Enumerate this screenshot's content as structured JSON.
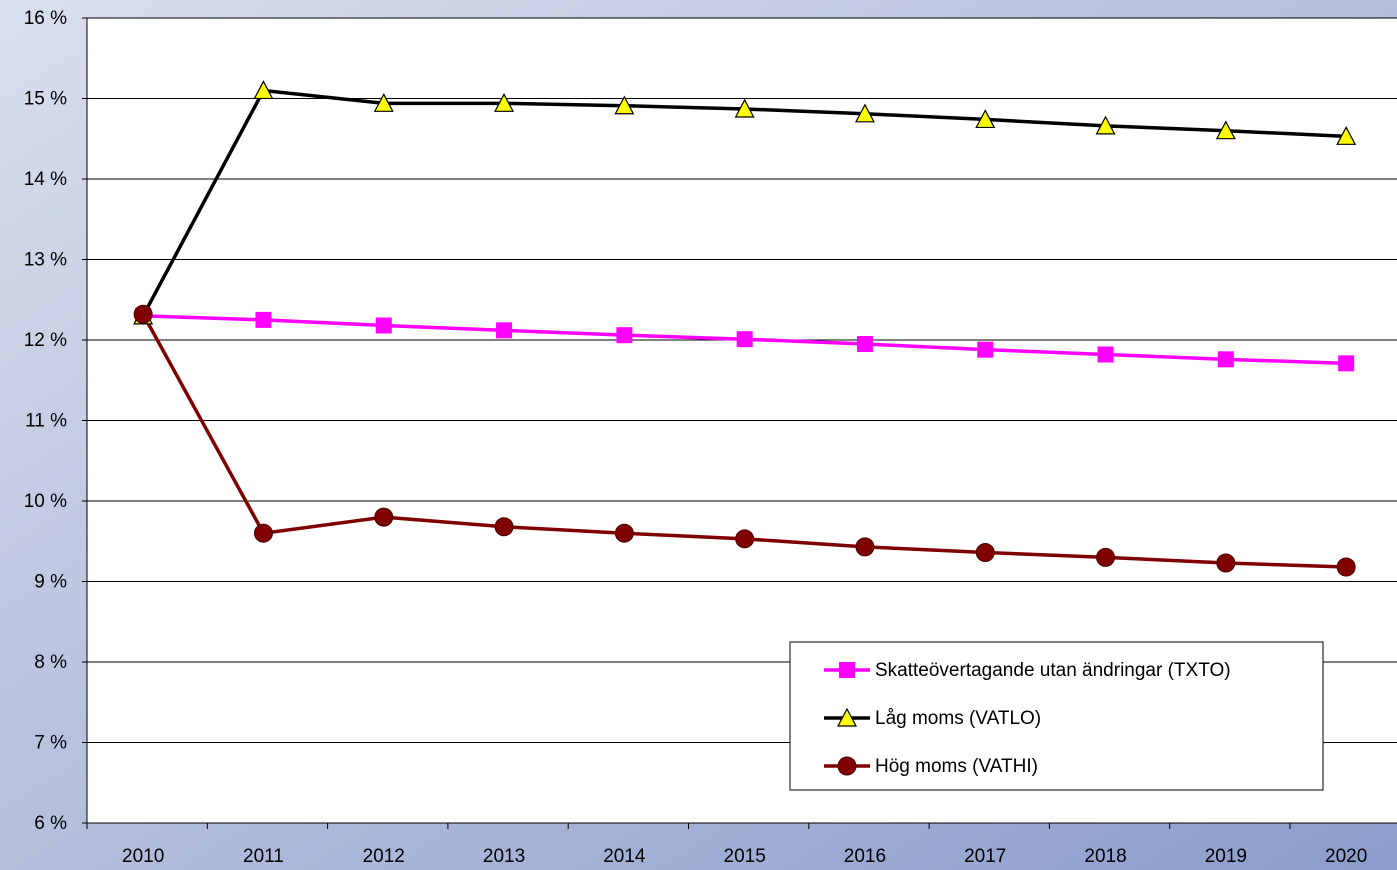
{
  "chart_data": {
    "type": "line",
    "categories": [
      "2010",
      "2011",
      "2012",
      "2013",
      "2014",
      "2015",
      "2016",
      "2017",
      "2018",
      "2019",
      "2020"
    ],
    "series": [
      {
        "name": "Skatteövertagande utan ändringar (TXTO)",
        "color": "#ff00ff",
        "marker": "square",
        "values": [
          12.3,
          12.25,
          12.18,
          12.12,
          12.06,
          12.01,
          11.95,
          11.88,
          11.82,
          11.76,
          11.71
        ]
      },
      {
        "name": "Låg moms (VATLO)",
        "color": "#000000",
        "marker": "triangle",
        "values": [
          12.3,
          15.1,
          14.94,
          14.94,
          14.91,
          14.87,
          14.81,
          14.74,
          14.66,
          14.6,
          14.53
        ]
      },
      {
        "name": "Hög moms (VATHI)",
        "color": "#800000",
        "marker": "circle",
        "values": [
          12.32,
          9.6,
          9.8,
          9.68,
          9.6,
          9.53,
          9.43,
          9.36,
          9.3,
          9.23,
          9.18
        ]
      }
    ],
    "ylim": [
      6,
      16
    ],
    "yticks": [
      {
        "value": 6,
        "label": "6 %"
      },
      {
        "value": 7,
        "label": "7 %"
      },
      {
        "value": 8,
        "label": "8 %"
      },
      {
        "value": 9,
        "label": "9 %"
      },
      {
        "value": 10,
        "label": "10 %"
      },
      {
        "value": 11,
        "label": "11 %"
      },
      {
        "value": 12,
        "label": "12 %"
      },
      {
        "value": 13,
        "label": "13 %"
      },
      {
        "value": 14,
        "label": "14 %"
      },
      {
        "value": 15,
        "label": "15 %"
      },
      {
        "value": 16,
        "label": "16 %"
      }
    ],
    "grid": true,
    "legend": "lower-right"
  }
}
